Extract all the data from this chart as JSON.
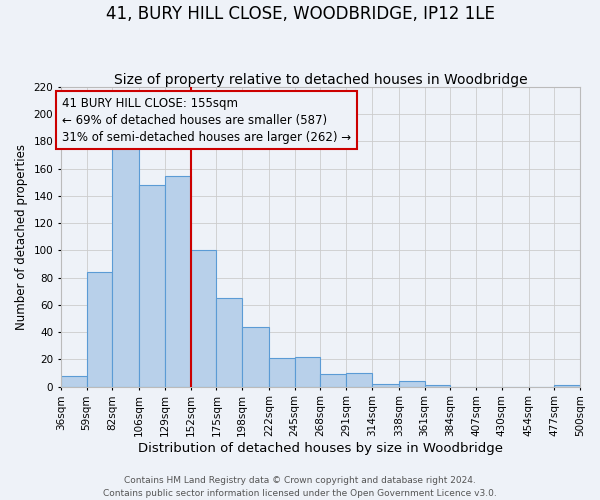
{
  "title": "41, BURY HILL CLOSE, WOODBRIDGE, IP12 1LE",
  "subtitle": "Size of property relative to detached houses in Woodbridge",
  "xlabel": "Distribution of detached houses by size in Woodbridge",
  "ylabel": "Number of detached properties",
  "footer_lines": [
    "Contains HM Land Registry data © Crown copyright and database right 2024.",
    "Contains public sector information licensed under the Open Government Licence v3.0."
  ],
  "bin_edges": [
    36,
    59,
    82,
    106,
    129,
    152,
    175,
    198,
    222,
    245,
    268,
    291,
    314,
    338,
    361,
    384,
    407,
    430,
    454,
    477,
    500
  ],
  "bin_counts": [
    8,
    84,
    179,
    148,
    155,
    100,
    65,
    44,
    21,
    22,
    9,
    10,
    2,
    4,
    1,
    0,
    0,
    0,
    0,
    1
  ],
  "bar_color": "#b8d0ea",
  "bar_edge_color": "#5b9bd5",
  "property_size": 155,
  "vline_x": 152,
  "vline_color": "#cc0000",
  "annotation_line1": "41 BURY HILL CLOSE: 155sqm",
  "annotation_line2": "← 69% of detached houses are smaller (587)",
  "annotation_line3": "31% of semi-detached houses are larger (262) →",
  "annotation_box_edge": "#cc0000",
  "annotation_fontsize": 8.5,
  "ylim": [
    0,
    220
  ],
  "yticks": [
    0,
    20,
    40,
    60,
    80,
    100,
    120,
    140,
    160,
    180,
    200,
    220
  ],
  "grid_color": "#cccccc",
  "background_color": "#eef2f8",
  "title_fontsize": 12,
  "subtitle_fontsize": 10,
  "xlabel_fontsize": 9.5,
  "ylabel_fontsize": 8.5,
  "tick_fontsize": 7.5
}
